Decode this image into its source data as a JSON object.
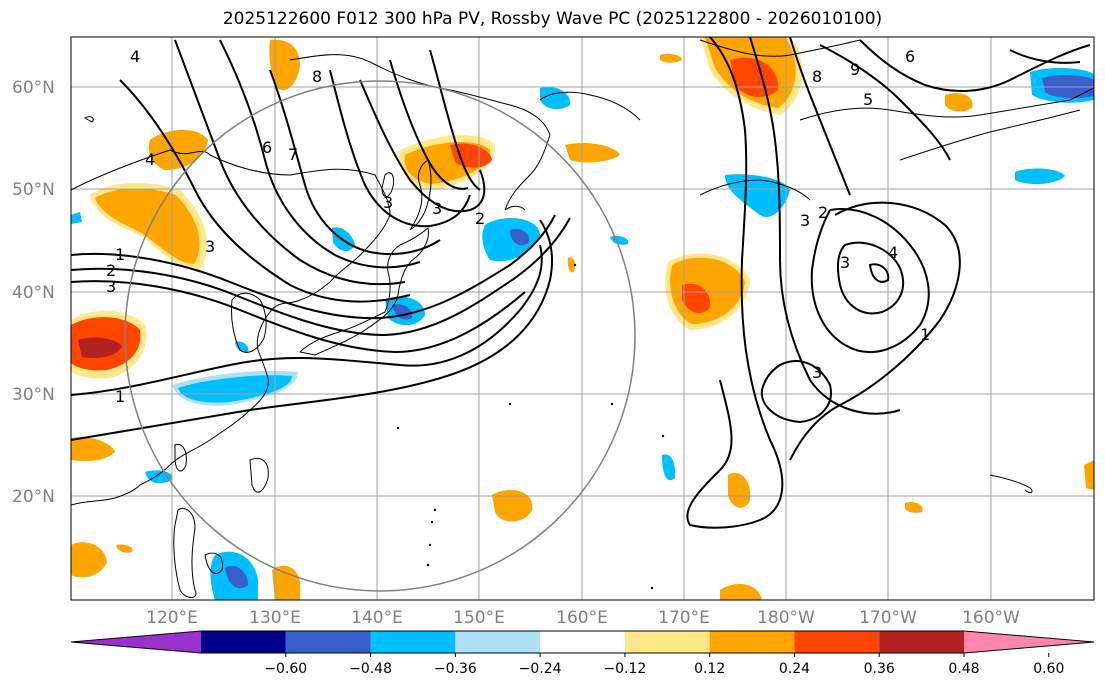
{
  "title": "2025122600 F012 300 hPa PV, Rossby Wave PC (2025122800 - 2026010100)",
  "lat_labels": [
    "60°N",
    "50°N",
    "40°N",
    "30°N",
    "20°N"
  ],
  "lon_labels": [
    "120°E",
    "130°E",
    "140°E",
    "150°E",
    "160°E",
    "170°E",
    "180°W",
    "170°W",
    "160°W"
  ],
  "colorbar": {
    "ticks": [
      "−0.60",
      "−0.48",
      "−0.36",
      "−0.24",
      "−0.12",
      "0.12",
      "0.24",
      "0.36",
      "0.48",
      "0.60"
    ],
    "colors": [
      "#9932cc",
      "#00008b",
      "#3a5fcd",
      "#00bfff",
      "#b0e0f8",
      "#ffffff",
      "#ffe78a",
      "#ffa500",
      "#ff4500",
      "#b22222",
      "#ff88aa"
    ]
  },
  "contour_labels": [
    "4",
    "8",
    "6",
    "7",
    "4",
    "3",
    "1",
    "2",
    "3",
    "1",
    "3",
    "3",
    "2",
    "8",
    "9",
    "6",
    "5",
    "3",
    "2",
    "3",
    "4",
    "3",
    "1"
  ],
  "colors": {
    "grid": "#a0a0a0",
    "coast": "#000000",
    "contour": "#000000",
    "range_circle": "#808080"
  }
}
